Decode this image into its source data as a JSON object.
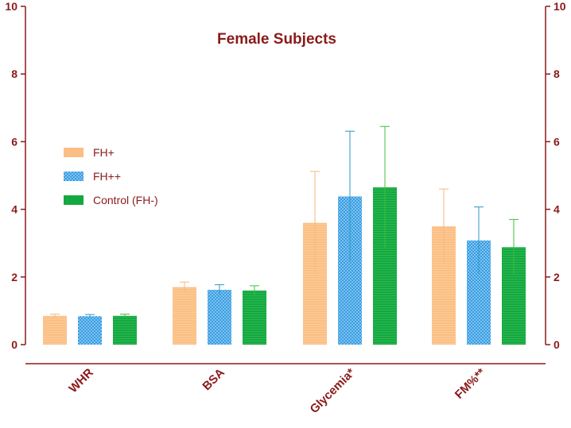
{
  "chart_data": {
    "type": "bar",
    "title": "Female Subjects",
    "categories": [
      "WHR",
      "BSA",
      "Glycemia*",
      "FM%**"
    ],
    "series": [
      {
        "name": "FH+",
        "values": [
          0.85,
          1.7,
          3.6,
          3.5
        ],
        "errors": [
          0.05,
          0.15,
          1.52,
          1.1
        ],
        "color": "#fbbf85",
        "errorColor": "#f7b77a"
      },
      {
        "name": "FH++",
        "values": [
          0.84,
          1.62,
          4.38,
          3.08
        ],
        "errors": [
          0.05,
          0.15,
          1.93,
          0.99
        ],
        "color": "#3b9be0",
        "errorColor": "#2a97c8"
      },
      {
        "name": "Control (FH-)",
        "values": [
          0.85,
          1.6,
          4.65,
          2.88
        ],
        "errors": [
          0.05,
          0.14,
          1.8,
          0.82
        ],
        "color": "#14a83f",
        "errorColor": "#3dc03d"
      }
    ],
    "ylim": [
      0,
      10
    ],
    "yticks": [
      0,
      2,
      4,
      6,
      8,
      10
    ],
    "right_axis": true,
    "grid": false,
    "legend_position": "left",
    "axis_color": "#8b1a1a"
  }
}
